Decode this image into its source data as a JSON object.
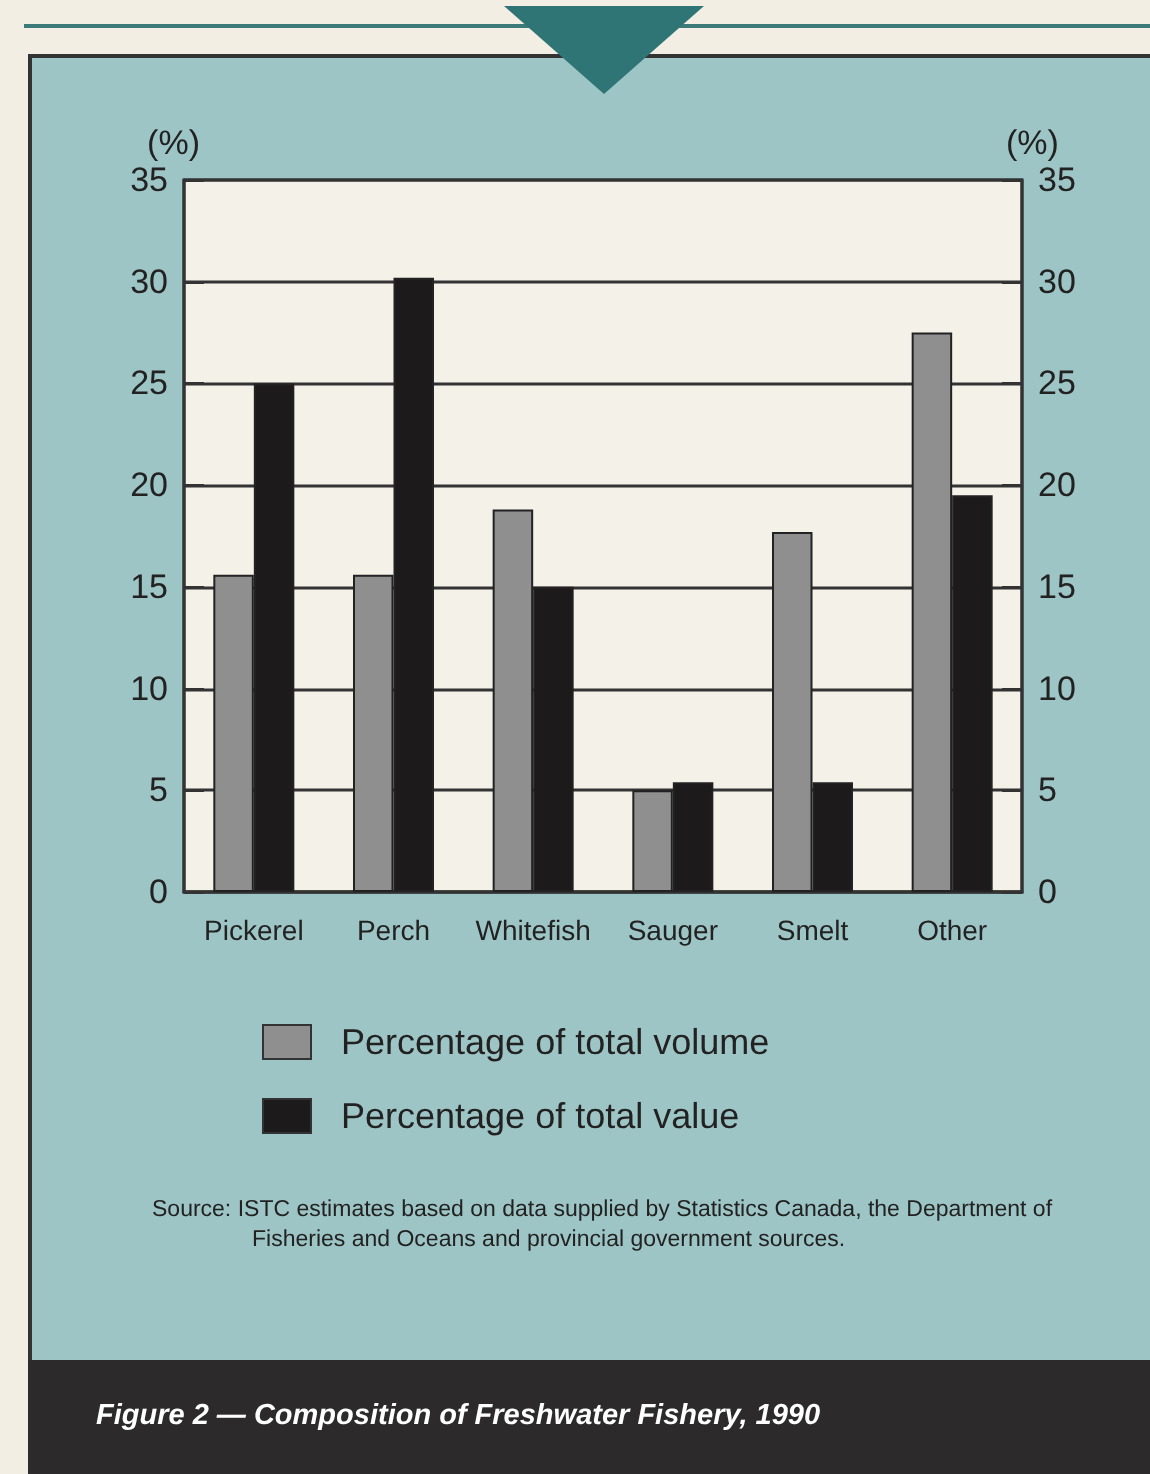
{
  "chart_data": {
    "type": "bar",
    "title": "Figure 2 — Composition of Freshwater Fishery, 1990",
    "ylabel": "(%)",
    "y2label": "(%)",
    "categories": [
      "Pickerel",
      "Perch",
      "Whitefish",
      "Sauger",
      "Smelt",
      "Other"
    ],
    "series": [
      {
        "name": "Percentage of total volume",
        "color": "#8f8f8f",
        "values": [
          15.6,
          15.6,
          18.8,
          5,
          17.7,
          27.5
        ]
      },
      {
        "name": "Percentage of total value",
        "color": "#1c1a1a",
        "values": [
          25,
          30.2,
          15,
          5.4,
          5.4,
          19.5
        ]
      }
    ],
    "ylim": [
      0,
      35
    ],
    "yticks": [
      0,
      5,
      10,
      15,
      20,
      25,
      30,
      35
    ],
    "y2lim": [
      0,
      35
    ],
    "y2ticks": [
      0,
      5,
      10,
      15,
      20,
      25,
      30,
      35
    ],
    "grid": "y",
    "legend": "bottom",
    "annotations": [
      "Source: ISTC estimates based on data supplied by Statistics Canada, the Department of Fisheries and Oceans and provincial government sources."
    ]
  }
}
